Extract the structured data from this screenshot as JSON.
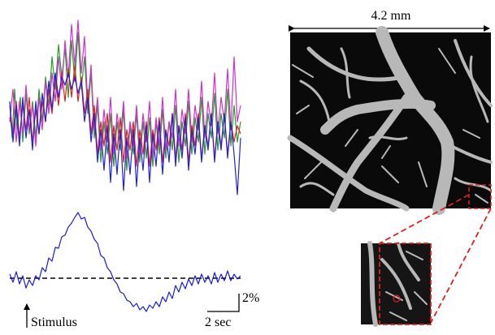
{
  "figure": {
    "image_scale_label": "4.2 mm",
    "amplitude_scale_label": "2%",
    "time_scale_label": "2 sec",
    "stimulus_label": "Stimulus"
  }
}
